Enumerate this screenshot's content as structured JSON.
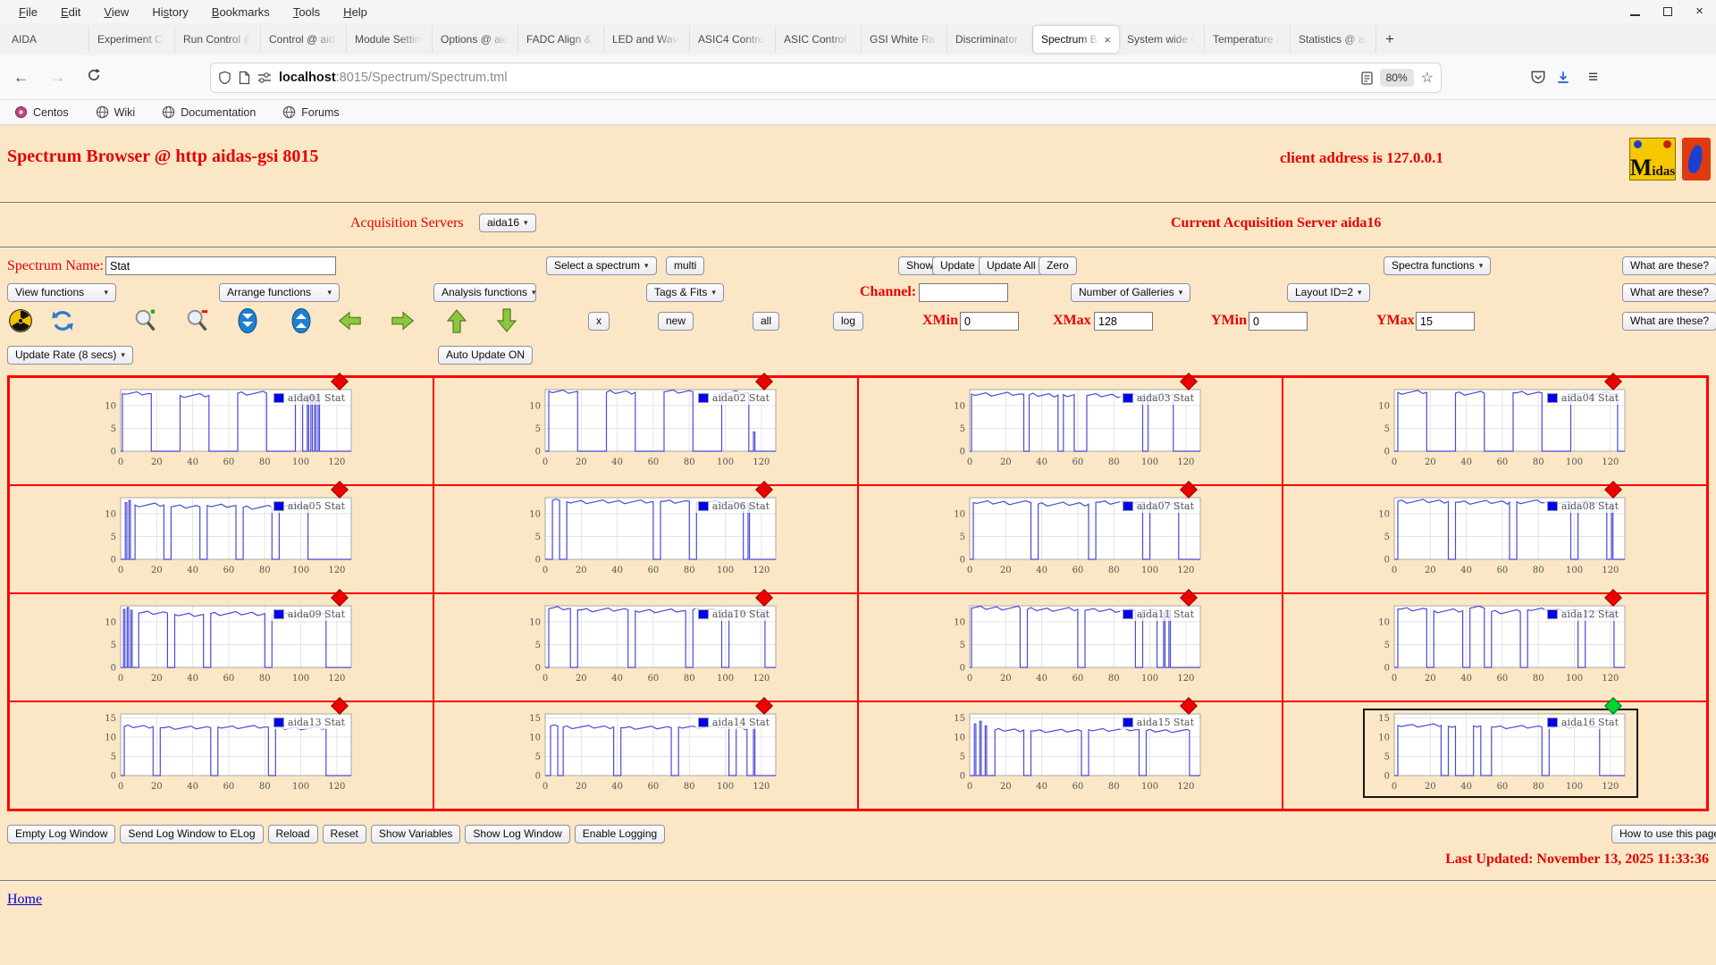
{
  "window": {
    "menu": [
      "File",
      "Edit",
      "View",
      "History",
      "Bookmarks",
      "Tools",
      "Help"
    ],
    "menu_accels": [
      0,
      0,
      0,
      2,
      0,
      0,
      0
    ],
    "controls": {
      "minimize": "minimize",
      "maximize": "maximize",
      "close": "close"
    }
  },
  "tabs": {
    "items": [
      "AIDA",
      "Experiment Co",
      "Run Control @",
      "Control @ aida",
      "Module Setting",
      "Options @ aida",
      "FADC Align & C",
      "LED and Wavef",
      "ASIC4 Control",
      "ASIC Control (G",
      "GSI White Rabb",
      "Discriminator c",
      "Spectrum Br",
      "System wide C",
      "Temperature a",
      "Statistics @ aid"
    ],
    "active_index": 12,
    "close_glyph": "×",
    "new_tab_glyph": "+"
  },
  "navbar": {
    "back": "←",
    "forward": "→",
    "url_host": "localhost",
    "url_rest": ":8015/Spectrum/Spectrum.tml",
    "zoom_badge": "80%",
    "star": "☆",
    "menu_glyph": "≡"
  },
  "bookmarks": [
    "Centos",
    "Wiki",
    "Documentation",
    "Forums"
  ],
  "page": {
    "title": "Spectrum Browser @ http aidas-gsi 8015",
    "client_address": "client address is 127.0.0.1",
    "logo_midas_m": "M",
    "logo_midas_rest": "idas",
    "acquisition_label": "Acquisition Servers",
    "acquisition_value": "aida16",
    "current_server": "Current Acquisition Server aida16",
    "spectrum_name_label": "Spectrum Name:",
    "select_spectrum": "Select a spectrum",
    "multi": "multi",
    "show": "Show",
    "update": "Update",
    "update_all": "Update All",
    "zero": "Zero",
    "spectra_functions": "Spectra functions",
    "what_are_these": "What are these?",
    "view_functions": "View functions",
    "arrange_functions": "Arrange functions",
    "analysis_functions": "Analysis functions",
    "tags_fits": "Tags & Fits",
    "channel_label": "Channel:",
    "number_of_galleries": "Number of Galleries",
    "layout_id": "Layout ID=2",
    "x_btn": "x",
    "new_btn": "new",
    "all_btn": "all",
    "log_btn": "log",
    "xmin_label": "XMin",
    "xmax_label": "XMax",
    "ymin_label": "YMin",
    "ymax_label": "YMax",
    "update_rate": "Update Rate (8 secs)",
    "auto_update": "Auto Update ON",
    "footer_buttons": [
      "Empty Log Window",
      "Send Log Window to ELog",
      "Reload",
      "Reset",
      "Show Variables",
      "Show Log Window",
      "Enable Logging"
    ],
    "how_to": "How to use this page",
    "last_updated": "Last Updated: November 13, 2025 11:33:36",
    "home": "Home"
  },
  "fields": {
    "spectrum_name": "Stat",
    "channel": "",
    "xmin": "0",
    "xmax": "128",
    "ymin": "0",
    "ymax": "15"
  },
  "colors": {
    "page_bg": "#fbe7c5",
    "accent_red": "#e60000",
    "grid_red": "#ff0000",
    "line_blue": "#4a4ada",
    "legend_blue": "#0000ee",
    "marker_red": "#ee0000",
    "marker_green": "#00d234"
  },
  "chart_data": {
    "type": "line",
    "x_ticks": [
      0,
      20,
      40,
      60,
      80,
      100,
      120
    ],
    "xlim": [
      0,
      128
    ],
    "legend_position": "top-right",
    "grid": true,
    "charts": [
      {
        "name": "aida01 Stat",
        "marker": "red",
        "selected": false,
        "y_ticks": [
          0,
          5,
          10
        ],
        "ymax": 13.5,
        "segments": [
          [
            1,
            17,
            12.6
          ],
          [
            33,
            49,
            12.2
          ],
          [
            65,
            81,
            12.7
          ],
          [
            97,
            101,
            12.4
          ]
        ],
        "spikes": [
          [
            104,
            12.2
          ],
          [
            106,
            12.5
          ],
          [
            108,
            12.0
          ],
          [
            110,
            12.4
          ]
        ]
      },
      {
        "name": "aida02 Stat",
        "marker": "red",
        "selected": false,
        "y_ticks": [
          0,
          5,
          10
        ],
        "ymax": 13.5,
        "segments": [
          [
            2,
            18,
            13.1
          ],
          [
            34,
            50,
            12.9
          ],
          [
            66,
            82,
            13.0
          ],
          [
            98,
            113,
            12.8
          ]
        ],
        "spikes": [
          [
            116,
            4.2
          ]
        ]
      },
      {
        "name": "aida03 Stat",
        "marker": "red",
        "selected": false,
        "y_ticks": [
          0,
          5,
          10
        ],
        "ymax": 13.5,
        "segments": [
          [
            1,
            30,
            12.5
          ],
          [
            33,
            49,
            12.3
          ],
          [
            52,
            58,
            12.4
          ],
          [
            65,
            96,
            12.2
          ],
          [
            99,
            113,
            12.4
          ]
        ],
        "spikes": []
      },
      {
        "name": "aida04 Stat",
        "marker": "red",
        "selected": false,
        "y_ticks": [
          0,
          5,
          10
        ],
        "ymax": 13.5,
        "segments": [
          [
            2,
            18,
            12.9
          ],
          [
            34,
            50,
            12.7
          ],
          [
            66,
            82,
            12.8
          ],
          [
            98,
            124,
            12.6
          ]
        ],
        "spikes": []
      },
      {
        "name": "aida05 Stat",
        "marker": "red",
        "selected": false,
        "y_ticks": [
          0,
          5,
          10
        ],
        "ymax": 13.5,
        "segments": [
          [
            8,
            24,
            11.9
          ],
          [
            28,
            44,
            11.5
          ],
          [
            48,
            64,
            11.8
          ],
          [
            68,
            84,
            11.4
          ],
          [
            88,
            104,
            11.7
          ]
        ],
        "spikes": [
          [
            3,
            12.4
          ],
          [
            5,
            12.9
          ]
        ]
      },
      {
        "name": "aida06 Stat",
        "marker": "red",
        "selected": false,
        "y_ticks": [
          0,
          5,
          10
        ],
        "ymax": 13.5,
        "segments": [
          [
            4,
            8,
            12.9
          ],
          [
            12,
            60,
            12.6
          ],
          [
            64,
            80,
            12.7
          ],
          [
            84,
            110,
            12.5
          ]
        ],
        "spikes": [
          [
            113,
            12.3
          ]
        ]
      },
      {
        "name": "aida07 Stat",
        "marker": "red",
        "selected": false,
        "y_ticks": [
          0,
          5,
          10
        ],
        "ymax": 13.5,
        "segments": [
          [
            2,
            34,
            12.4
          ],
          [
            38,
            66,
            12.1
          ],
          [
            70,
            96,
            12.5
          ],
          [
            100,
            116,
            12.3
          ]
        ],
        "spikes": []
      },
      {
        "name": "aida08 Stat",
        "marker": "red",
        "selected": false,
        "y_ticks": [
          0,
          5,
          10
        ],
        "ymax": 13.5,
        "segments": [
          [
            2,
            30,
            12.7
          ],
          [
            34,
            64,
            12.5
          ],
          [
            68,
            98,
            12.6
          ],
          [
            102,
            118,
            12.4
          ]
        ],
        "spikes": [
          [
            121,
            12.2
          ]
        ]
      },
      {
        "name": "aida09 Stat",
        "marker": "red",
        "selected": false,
        "y_ticks": [
          0,
          5,
          10
        ],
        "ymax": 13.5,
        "segments": [
          [
            10,
            26,
            11.9
          ],
          [
            30,
            46,
            11.6
          ],
          [
            50,
            80,
            11.8
          ],
          [
            84,
            114,
            11.5
          ]
        ],
        "spikes": [
          [
            2,
            12.7
          ],
          [
            4,
            13.1
          ],
          [
            6,
            12.5
          ]
        ]
      },
      {
        "name": "aida10 Stat",
        "marker": "red",
        "selected": false,
        "y_ticks": [
          0,
          5,
          10
        ],
        "ymax": 13.5,
        "segments": [
          [
            2,
            14,
            12.9
          ],
          [
            18,
            46,
            12.6
          ],
          [
            50,
            78,
            12.4
          ],
          [
            82,
            98,
            12.6
          ],
          [
            102,
            122,
            12.3
          ]
        ],
        "spikes": []
      },
      {
        "name": "aida11 Stat",
        "marker": "red",
        "selected": false,
        "y_ticks": [
          0,
          5,
          10
        ],
        "ymax": 13.5,
        "segments": [
          [
            1,
            28,
            13.0
          ],
          [
            32,
            60,
            12.7
          ],
          [
            64,
            92,
            12.5
          ],
          [
            96,
            104,
            12.6
          ]
        ],
        "spikes": [
          [
            108,
            12.1
          ],
          [
            111,
            12.5
          ]
        ]
      },
      {
        "name": "aida12 Stat",
        "marker": "red",
        "selected": false,
        "y_ticks": [
          0,
          5,
          10
        ],
        "ymax": 13.5,
        "segments": [
          [
            2,
            18,
            12.8
          ],
          [
            22,
            38,
            12.4
          ],
          [
            42,
            50,
            13.0
          ],
          [
            54,
            70,
            12.2
          ],
          [
            74,
            102,
            12.6
          ],
          [
            106,
            122,
            12.4
          ]
        ],
        "spikes": []
      },
      {
        "name": "aida13 Stat",
        "marker": "red",
        "selected": false,
        "y_ticks": [
          0,
          5,
          10,
          15
        ],
        "ymax": 16,
        "segments": [
          [
            2,
            18,
            12.7
          ],
          [
            22,
            50,
            12.4
          ],
          [
            54,
            82,
            12.6
          ],
          [
            86,
            114,
            12.3
          ]
        ],
        "spikes": []
      },
      {
        "name": "aida14 Stat",
        "marker": "red",
        "selected": false,
        "y_ticks": [
          0,
          5,
          10,
          15
        ],
        "ymax": 16,
        "segments": [
          [
            3,
            7,
            12.9
          ],
          [
            10,
            38,
            12.6
          ],
          [
            42,
            70,
            12.4
          ],
          [
            74,
            102,
            12.6
          ],
          [
            106,
            112,
            12.2
          ]
        ],
        "spikes": [
          [
            116,
            12.4
          ]
        ]
      },
      {
        "name": "aida15 Stat",
        "marker": "red",
        "selected": false,
        "y_ticks": [
          0,
          5,
          10,
          15
        ],
        "ymax": 16,
        "segments": [
          [
            14,
            30,
            11.8
          ],
          [
            34,
            62,
            11.6
          ],
          [
            66,
            94,
            11.9
          ],
          [
            98,
            122,
            11.6
          ]
        ],
        "spikes": [
          [
            3,
            13.4
          ],
          [
            6,
            14.1
          ],
          [
            9,
            12.9
          ]
        ]
      },
      {
        "name": "aida16 Stat",
        "marker": "green",
        "selected": true,
        "y_ticks": [
          0,
          5,
          10,
          15
        ],
        "ymax": 16,
        "segments": [
          [
            2,
            26,
            13.0
          ],
          [
            30,
            34,
            12.8
          ],
          [
            44,
            48,
            12.9
          ],
          [
            54,
            82,
            12.6
          ],
          [
            86,
            114,
            12.7
          ]
        ],
        "spikes": []
      }
    ]
  }
}
